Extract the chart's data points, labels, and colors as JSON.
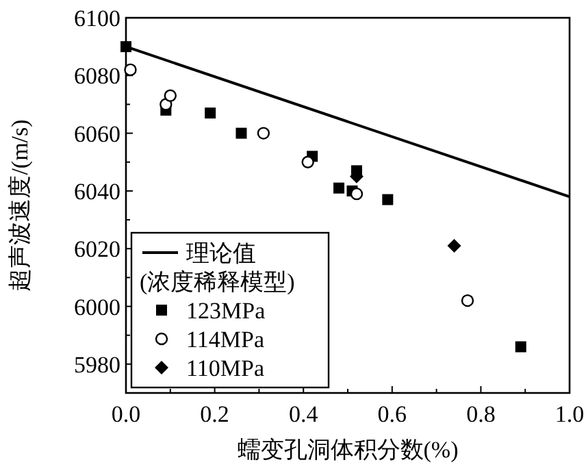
{
  "chart_data": {
    "type": "scatter",
    "xlabel": "蠕变孔洞体积分数(%)",
    "ylabel": "超声波速度/(m/s)",
    "xlim": [
      0,
      1
    ],
    "ylim": [
      5970,
      6100
    ],
    "xticks": [
      {
        "value": 0,
        "label": "0.0"
      },
      {
        "value": 0.1,
        "label": null
      },
      {
        "value": 0.2,
        "label": "0.2"
      },
      {
        "value": 0.3,
        "label": null
      },
      {
        "value": 0.4,
        "label": "0.4"
      },
      {
        "value": 0.5,
        "label": null
      },
      {
        "value": 0.6,
        "label": "0.6"
      },
      {
        "value": 0.7,
        "label": null
      },
      {
        "value": 0.8,
        "label": "0.8"
      },
      {
        "value": 0.9,
        "label": null
      },
      {
        "value": 1,
        "label": "1.0"
      }
    ],
    "yticks": [
      {
        "value": 5970,
        "label": null
      },
      5980,
      {
        "value": 5990,
        "label": null
      },
      6000,
      {
        "value": 6010,
        "label": null
      },
      6020,
      {
        "value": 6030,
        "label": null
      },
      6040,
      {
        "value": 6050,
        "label": null
      },
      6060,
      {
        "value": 6070,
        "label": null
      },
      6080,
      {
        "value": 6090,
        "label": null
      },
      6100
    ],
    "legend": "bottom left",
    "grid": false,
    "series": [
      {
        "name": "理论值\n(浓度稀释模型)",
        "type": "line",
        "color": "#000000",
        "x": [
          0,
          1
        ],
        "values": [
          6090,
          6038
        ],
        "line_style": "solid",
        "marker": "none"
      },
      {
        "name": "123MPa",
        "color": "#000000",
        "marker": "square",
        "x": [
          0.0,
          0.09,
          0.19,
          0.26,
          0.42,
          0.48,
          0.51,
          0.52,
          0.59,
          0.89
        ],
        "values": [
          6090,
          6068,
          6067,
          6060,
          6052,
          6041,
          6040,
          6047,
          6037,
          5986
        ]
      },
      {
        "name": "114MPa",
        "color": "#000000",
        "marker": "circle",
        "x": [
          0.01,
          0.09,
          0.1,
          0.31,
          0.41,
          0.52,
          0.77
        ],
        "values": [
          6082,
          6070,
          6073,
          6060,
          6050,
          6039,
          6002
        ]
      },
      {
        "name": "110MPa",
        "color": "#000000",
        "marker": "diamond",
        "x": [
          0.52,
          0.74
        ],
        "values": [
          6045,
          6021
        ]
      }
    ]
  }
}
